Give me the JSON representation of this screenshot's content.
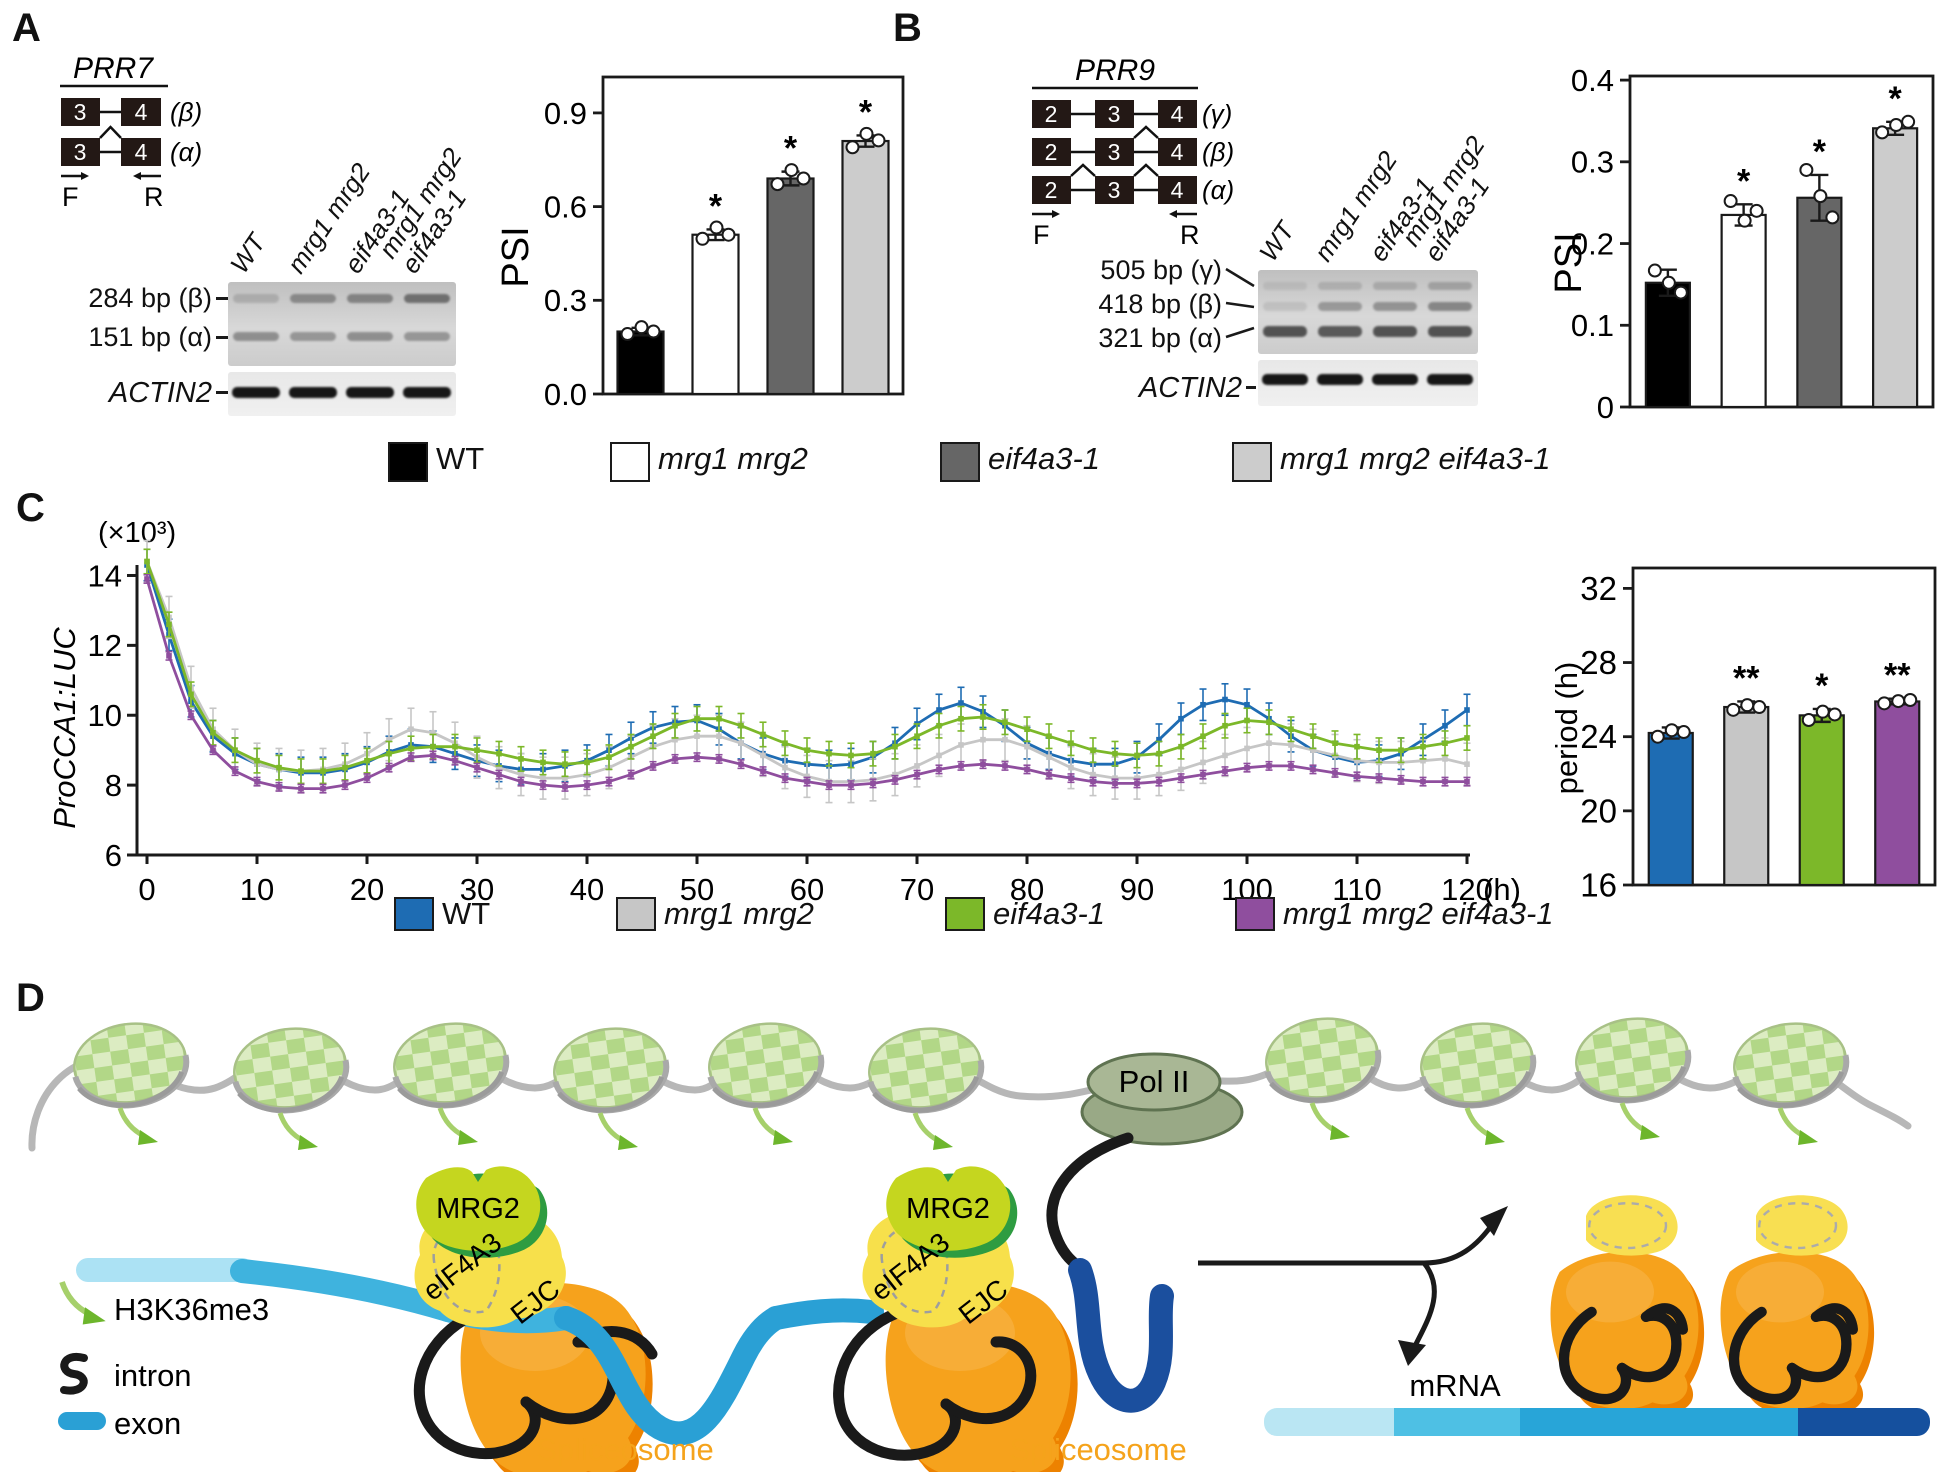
{
  "panels": {
    "a": {
      "letter": "A",
      "gene": "PRR7",
      "isoforms": [
        {
          "exons": [
            "3",
            "4"
          ],
          "label": "(β)"
        },
        {
          "exons": [
            "3",
            "4"
          ],
          "label": "(α)"
        }
      ],
      "primer_f": "F",
      "primer_r": "R",
      "gel": {
        "lanes": [
          "WT",
          "mrg1 mrg2",
          "eif4a3-1",
          "mrg1 mrg2\neif4a3-1"
        ],
        "band_labels": [
          "284 bp (β)",
          "151 bp (α)"
        ],
        "control": "ACTIN2"
      }
    },
    "b": {
      "letter": "B",
      "gene": "PRR9",
      "isoforms": [
        {
          "exons": [
            "2",
            "3",
            "4"
          ],
          "label": "(γ)"
        },
        {
          "exons": [
            "2",
            "3",
            "4"
          ],
          "label": "(β)"
        },
        {
          "exons": [
            "2",
            "3",
            "4"
          ],
          "label": "(α)"
        }
      ],
      "primer_f": "F",
      "primer_r": "R",
      "gel": {
        "lanes": [
          "WT",
          "mrg1 mrg2",
          "eif4a3-1",
          "mrg1 mrg2\neif4a3-1"
        ],
        "band_labels": [
          "505 bp (γ)",
          "418 bp (β)",
          "321 bp (α)"
        ],
        "control": "ACTIN2"
      }
    },
    "c": {
      "letter": "C",
      "scale_label": "(×10³)",
      "ylabel": "ProCCA1:LUC",
      "x_unit": "(h)"
    },
    "d": {
      "letter": "D",
      "pol2": "Pol II",
      "mrg2": "MRG2",
      "eif4a3": "eIF4A3",
      "ejc": "EJC",
      "spliceosome": "Spliceosome",
      "mrna": "mRNA",
      "legend": [
        {
          "label": "H3K36me3"
        },
        {
          "label": "intron"
        },
        {
          "label": "exon"
        }
      ]
    }
  },
  "legend_ab": {
    "items": [
      {
        "label": "WT",
        "color": "#000000",
        "italic": false
      },
      {
        "label": "mrg1 mrg2",
        "color": "#ffffff",
        "italic": true
      },
      {
        "label": "eif4a3-1",
        "color": "#666666",
        "italic": true
      },
      {
        "label": "mrg1 mrg2 eif4a3-1",
        "color": "#cccccc",
        "italic": true
      }
    ]
  },
  "legend_c": {
    "items": [
      {
        "label": "WT",
        "color": "#1e6cb3",
        "italic": false
      },
      {
        "label": "mrg1 mrg2",
        "color": "#c6c6c6",
        "italic": true
      },
      {
        "label": "eif4a3-1",
        "color": "#7cb829",
        "italic": true
      },
      {
        "label": "mrg1 mrg2 eif4a3-1",
        "color": "#8f4e9e",
        "italic": true
      }
    ]
  },
  "colors": {
    "exon_box": "#231815",
    "wt_bar": "#000000",
    "mrg1mrg2_bar": "#ffffff",
    "eif4a3_bar": "#666666",
    "triple_bar": "#cccccc",
    "wt_line": "#1e6cb3",
    "mrg1mrg2_line": "#c6c6c6",
    "eif4a3_line": "#7cb829",
    "triple_line": "#8f4e9e",
    "spliceosome": "#f6a21c",
    "spliceosome_text": "#f5a31b",
    "ejc_blob": "#f7e04b",
    "mrg2_blob": "#c5d61f",
    "pol2": "#99a986",
    "exon_light": "#ace2f4",
    "exon_mid": "#3fb3de",
    "exon_dark": "#2aa0d5",
    "exon_navy": "#1b4f9e"
  },
  "chart_data": [
    {
      "id": "psi-prr7",
      "type": "bar",
      "ylabel": "PSI",
      "categories": [
        "WT",
        "mrg1 mrg2",
        "eif4a3-1",
        "mrg1 mrg2 eif4a3-1"
      ],
      "values": [
        0.2,
        0.51,
        0.69,
        0.81
      ],
      "errors": [
        0.012,
        0.017,
        0.022,
        0.018
      ],
      "points": [
        [
          0.192,
          0.214,
          0.2
        ],
        [
          0.497,
          0.533,
          0.51
        ],
        [
          0.672,
          0.717,
          0.69
        ],
        [
          0.79,
          0.833,
          0.812
        ]
      ],
      "significance": [
        "",
        "*",
        "*",
        "*"
      ],
      "bar_colors": [
        "#000000",
        "#ffffff",
        "#666666",
        "#cccccc"
      ],
      "ylim": [
        0,
        1.015
      ],
      "yticks": [
        0,
        0.3,
        0.6,
        0.9
      ],
      "ytick_labels": [
        "0.0",
        "0.3",
        "0.6",
        "0.9"
      ]
    },
    {
      "id": "psi-prr9",
      "type": "bar",
      "ylabel": "PSI",
      "categories": [
        "WT",
        "mrg1 mrg2",
        "eif4a3-1",
        "mrg1 mrg2 eif4a3-1"
      ],
      "values": [
        0.152,
        0.235,
        0.256,
        0.341
      ],
      "errors": [
        0.016,
        0.013,
        0.028,
        0.008
      ],
      "points": [
        [
          0.167,
          0.152,
          0.14
        ],
        [
          0.252,
          0.228,
          0.24
        ],
        [
          0.29,
          0.258,
          0.232
        ],
        [
          0.336,
          0.345,
          0.349
        ]
      ],
      "significance": [
        "",
        "*",
        "*",
        "*"
      ],
      "bar_colors": [
        "#000000",
        "#ffffff",
        "#666666",
        "#cccccc"
      ],
      "ylim": [
        0,
        0.405
      ],
      "yticks": [
        0,
        0.1,
        0.2,
        0.3,
        0.4
      ],
      "ytick_labels": [
        "0",
        "0.1",
        "0.2",
        "0.3",
        "0.4"
      ]
    },
    {
      "id": "luc-rhythm",
      "type": "line",
      "title": "",
      "ylabel": "ProCCA1:LUC",
      "ylabel_scale": "(×10³)",
      "x_unit": "(h)",
      "xlim": [
        0,
        120
      ],
      "xtick_step": 10,
      "ylim": [
        6,
        14.3
      ],
      "yticks": [
        6,
        8,
        10,
        12,
        14
      ],
      "x_start": 0,
      "x_step": 2,
      "series": [
        {
          "name": "WT",
          "color": "#1e6cb3",
          "error": 0.45,
          "values": [
            14.3,
            12.3,
            10.4,
            9.4,
            8.9,
            8.6,
            8.45,
            8.35,
            8.35,
            8.45,
            8.65,
            8.95,
            9.15,
            9.1,
            8.9,
            8.7,
            8.55,
            8.45,
            8.45,
            8.55,
            8.7,
            9.0,
            9.35,
            9.65,
            9.8,
            9.85,
            9.6,
            9.2,
            8.9,
            8.7,
            8.6,
            8.55,
            8.6,
            8.8,
            9.2,
            9.75,
            10.15,
            10.35,
            10.1,
            9.7,
            9.2,
            8.9,
            8.7,
            8.6,
            8.6,
            8.8,
            9.3,
            9.9,
            10.3,
            10.45,
            10.3,
            9.9,
            9.4,
            9.0,
            8.8,
            8.65,
            8.7,
            8.9,
            9.3,
            9.7,
            10.15
          ]
        },
        {
          "name": "mrg1 mrg2",
          "color": "#c6c6c6",
          "error": 0.6,
          "values": [
            14.4,
            12.8,
            10.8,
            9.6,
            9.0,
            8.6,
            8.45,
            8.4,
            8.45,
            8.6,
            8.9,
            9.3,
            9.6,
            9.5,
            9.2,
            8.8,
            8.5,
            8.3,
            8.2,
            8.2,
            8.3,
            8.5,
            8.8,
            9.1,
            9.3,
            9.4,
            9.4,
            9.2,
            8.85,
            8.5,
            8.25,
            8.1,
            8.1,
            8.15,
            8.3,
            8.55,
            8.85,
            9.15,
            9.3,
            9.3,
            9.1,
            8.8,
            8.5,
            8.3,
            8.2,
            8.2,
            8.3,
            8.45,
            8.65,
            8.85,
            9.05,
            9.2,
            9.15,
            9.0,
            8.85,
            8.7,
            8.65,
            8.65,
            8.7,
            8.75,
            8.6
          ]
        },
        {
          "name": "eif4a3-1",
          "color": "#7cb829",
          "error": 0.35,
          "values": [
            14.4,
            12.6,
            10.6,
            9.5,
            9.0,
            8.7,
            8.5,
            8.4,
            8.4,
            8.5,
            8.7,
            8.9,
            9.05,
            9.1,
            9.1,
            9.0,
            8.9,
            8.75,
            8.65,
            8.6,
            8.65,
            8.8,
            9.1,
            9.4,
            9.7,
            9.9,
            9.9,
            9.7,
            9.45,
            9.2,
            9.0,
            8.9,
            8.85,
            8.9,
            9.1,
            9.4,
            9.7,
            9.9,
            9.95,
            9.8,
            9.6,
            9.4,
            9.2,
            9.0,
            8.9,
            8.85,
            8.9,
            9.1,
            9.4,
            9.7,
            9.85,
            9.8,
            9.6,
            9.4,
            9.2,
            9.1,
            9.0,
            9.0,
            9.1,
            9.2,
            9.35
          ]
        },
        {
          "name": "mrg1 mrg2 eif4a3-1",
          "color": "#8f4e9e",
          "error": 0.12,
          "values": [
            13.9,
            11.7,
            10.0,
            9.0,
            8.4,
            8.1,
            7.95,
            7.9,
            7.9,
            8.0,
            8.2,
            8.5,
            8.8,
            8.85,
            8.7,
            8.5,
            8.3,
            8.1,
            8.0,
            7.95,
            8.0,
            8.1,
            8.3,
            8.55,
            8.75,
            8.8,
            8.75,
            8.6,
            8.4,
            8.2,
            8.1,
            8.0,
            8.0,
            8.05,
            8.15,
            8.3,
            8.45,
            8.55,
            8.6,
            8.55,
            8.45,
            8.3,
            8.2,
            8.1,
            8.05,
            8.05,
            8.1,
            8.2,
            8.3,
            8.4,
            8.5,
            8.55,
            8.55,
            8.45,
            8.35,
            8.25,
            8.2,
            8.15,
            8.1,
            8.1,
            8.1
          ]
        }
      ]
    },
    {
      "id": "period",
      "type": "bar",
      "ylabel": "period (h)",
      "categories": [
        "WT",
        "mrg1 mrg2",
        "eif4a3-1",
        "mrg1 mrg2 eif4a3-1"
      ],
      "values": [
        24.2,
        25.6,
        25.15,
        25.9
      ],
      "errors": [
        0.3,
        0.3,
        0.35,
        0.15
      ],
      "points": [
        [
          24.0,
          24.35,
          24.25
        ],
        [
          25.45,
          25.7,
          25.6
        ],
        [
          24.9,
          25.35,
          25.2
        ],
        [
          25.8,
          25.92,
          25.98
        ]
      ],
      "significance": [
        "",
        "**",
        "*",
        "**"
      ],
      "bar_colors": [
        "#1e6cb3",
        "#c6c6c6",
        "#7cb829",
        "#8f4e9e"
      ],
      "ylim": [
        16,
        33.1
      ],
      "yticks": [
        16,
        20,
        24,
        28,
        32
      ],
      "ytick_labels": [
        "16",
        "20",
        "24",
        "28",
        "32"
      ]
    }
  ]
}
